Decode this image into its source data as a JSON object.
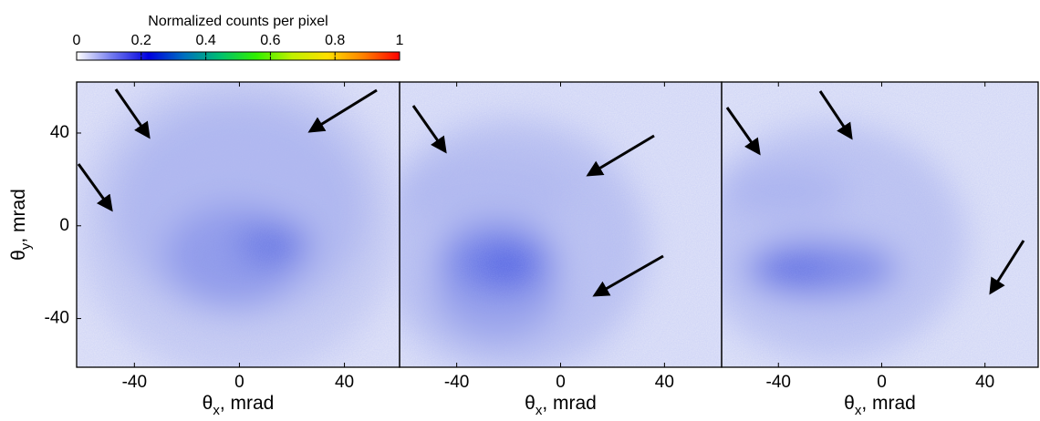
{
  "chart_data": [
    {
      "type": "heatmap",
      "colorbar": {
        "title": "Normalized counts per pixel",
        "lim": [
          0,
          1
        ],
        "ticks": [
          0,
          0.2,
          0.4,
          0.6,
          0.8,
          1
        ],
        "colors": [
          "#ffffff",
          "#7078ee",
          "#0000e0",
          "#0070c0",
          "#00c070",
          "#30f000",
          "#c0f000",
          "#ffe000",
          "#ff8000",
          "#ff0000"
        ]
      },
      "xlim": [
        -62,
        61
      ],
      "ylim": [
        -61,
        62
      ],
      "xticks": [
        -40,
        0,
        40
      ],
      "yticks": [
        -40,
        0,
        40
      ],
      "xlabel": {
        "symbol": "θ",
        "sub": "x",
        "text": ", mrad"
      },
      "ylabel": {
        "symbol": "θ",
        "sub": "y",
        "text": ", mrad"
      }
    },
    {
      "type": "heatmap",
      "xlim": [
        -62,
        62
      ],
      "ylim": [
        -61,
        62
      ],
      "xticks": [
        -40,
        0,
        40
      ],
      "xlabel": {
        "symbol": "θ",
        "sub": "x",
        "text": ", mrad"
      }
    },
    {
      "type": "heatmap",
      "xlim": [
        -62,
        60.6
      ],
      "ylim": [
        -61,
        62
      ],
      "xticks": [
        -40,
        0,
        40
      ],
      "xlabel": {
        "symbol": "θ",
        "sub": "x",
        "text": ", mrad"
      }
    }
  ]
}
